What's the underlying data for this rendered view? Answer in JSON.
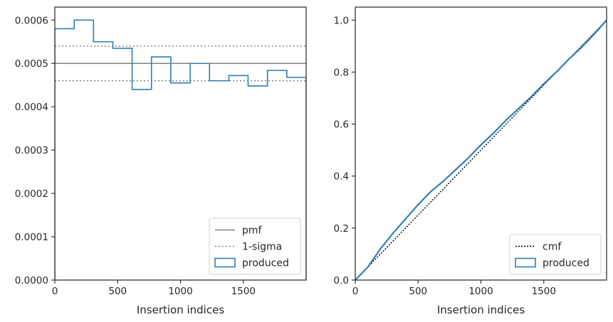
{
  "chart_data": [
    {
      "type": "histogram",
      "xlabel": "Insertion indices",
      "ylabel": "",
      "xlim": [
        0,
        2000
      ],
      "ylim": [
        0,
        0.00063
      ],
      "x_ticks": [
        0,
        500,
        1000,
        1500
      ],
      "x_tick_labels": [
        "0",
        "500",
        "1000",
        "1500"
      ],
      "y_ticks": [
        0,
        0.0001,
        0.0002,
        0.0003,
        0.0004,
        0.0005,
        0.0006
      ],
      "y_tick_labels": [
        "0.0000",
        "0.0001",
        "0.0002",
        "0.0003",
        "0.0004",
        "0.0005",
        "0.0006"
      ],
      "grid": false,
      "legend_position": "lower-right",
      "bin_edges": [
        0,
        154,
        308,
        462,
        615,
        769,
        923,
        1077,
        1231,
        1385,
        1538,
        1692,
        1846,
        2000
      ],
      "counts": [
        0.00058,
        0.0006,
        0.00055,
        0.000535,
        0.00044,
        0.000515,
        0.000455,
        0.0005,
        0.00046,
        0.000472,
        0.000448,
        0.000484,
        0.000468
      ],
      "lines": [
        {
          "name": "pmf",
          "y": 0.0005,
          "style": "solid",
          "color": "#808080"
        },
        {
          "name": "1-sigma",
          "y": 0.00054,
          "style": "dotted",
          "color": "#808080"
        },
        {
          "name": "1-sigma",
          "y": 0.00046,
          "style": "dotted",
          "color": "#808080",
          "no_legend": true
        }
      ],
      "series": [
        {
          "name": "produced",
          "color": "#2f7fb2"
        }
      ],
      "legend": [
        "pmf",
        "1-sigma",
        "produced"
      ]
    },
    {
      "type": "line",
      "xlabel": "Insertion indices",
      "ylabel": "",
      "xlim": [
        0,
        2000
      ],
      "ylim": [
        0,
        1.05
      ],
      "x_ticks": [
        0,
        500,
        1000,
        1500
      ],
      "x_tick_labels": [
        "0",
        "500",
        "1000",
        "1500"
      ],
      "y_ticks": [
        0,
        0.2,
        0.4,
        0.6,
        0.8,
        1.0
      ],
      "y_tick_labels": [
        "0.0",
        "0.2",
        "0.4",
        "0.6",
        "0.8",
        "1.0"
      ],
      "grid": false,
      "legend_position": "lower-right",
      "series": [
        {
          "name": "cmf",
          "style": "dotted",
          "color": "#000000",
          "x": [
            0,
            2000
          ],
          "y": [
            0,
            1.0
          ]
        },
        {
          "name": "produced",
          "style": "step",
          "color": "#2f7fb2",
          "x": [
            0,
            100,
            200,
            300,
            400,
            500,
            600,
            700,
            800,
            900,
            1000,
            1100,
            1200,
            1300,
            1400,
            1500,
            1600,
            1700,
            1800,
            1900,
            2000
          ],
          "y": [
            0,
            0.05,
            0.12,
            0.18,
            0.235,
            0.29,
            0.34,
            0.38,
            0.425,
            0.47,
            0.52,
            0.565,
            0.615,
            0.66,
            0.705,
            0.755,
            0.8,
            0.85,
            0.895,
            0.945,
            1.0
          ]
        }
      ],
      "legend": [
        "cmf",
        "produced"
      ]
    }
  ]
}
